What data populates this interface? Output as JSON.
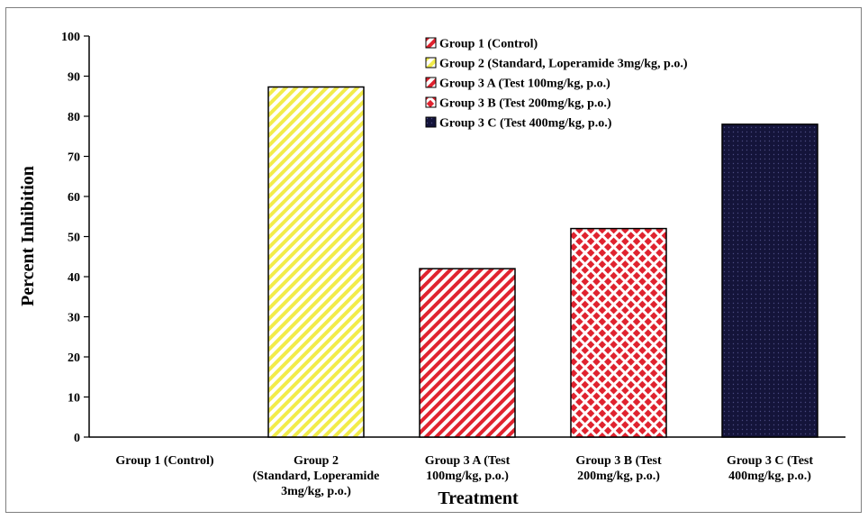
{
  "chart_data": {
    "type": "bar",
    "categories": [
      "Group 1 (Control)",
      "Group 2 (Standard, Loperamide 3mg/kg, p.o.)",
      "Group 3 A (Test 100mg/kg, p.o.)",
      "Group 3 B (Test 200mg/kg, p.o.)",
      "Group 3 C (Test 400mg/kg, p.o.)"
    ],
    "category_label_lines": [
      [
        "Group 1 (Control)"
      ],
      [
        "Group 2",
        "(Standard, Loperamide",
        "3mg/kg, p.o.)"
      ],
      [
        "Group 3 A (Test",
        "100mg/kg, p.o.)"
      ],
      [
        "Group 3 B (Test",
        "200mg/kg, p.o.)"
      ],
      [
        "Group 3 C (Test",
        "400mg/kg, p.o.)"
      ]
    ],
    "values": [
      0,
      87.3,
      42,
      52,
      78
    ],
    "xlabel": "Treatment",
    "ylabel": "Percent Inhibition",
    "ylim": [
      0,
      100
    ],
    "yticks": [
      0,
      10,
      20,
      30,
      40,
      50,
      60,
      70,
      80,
      90,
      100
    ],
    "grid": false,
    "legend": {
      "placement": "top-center",
      "entries": [
        "Group 1 (Control)",
        "Group 2 (Standard, Loperamide 3mg/kg, p.o.)",
        "Group 3 A (Test 100mg/kg, p.o.)",
        "Group 3 B (Test 200mg/kg, p.o.)",
        "Group 3 C (Test 400mg/kg, p.o.)"
      ]
    },
    "colors": [
      "#d7263d",
      "#f7f26a",
      "#e0232f",
      "#e0232f",
      "#14143a"
    ],
    "patterns": [
      "red-diagonal-stripes",
      "yellow-diagonal-stripes",
      "red-diagonal-stripes",
      "red-checker",
      "navy-dots"
    ]
  }
}
